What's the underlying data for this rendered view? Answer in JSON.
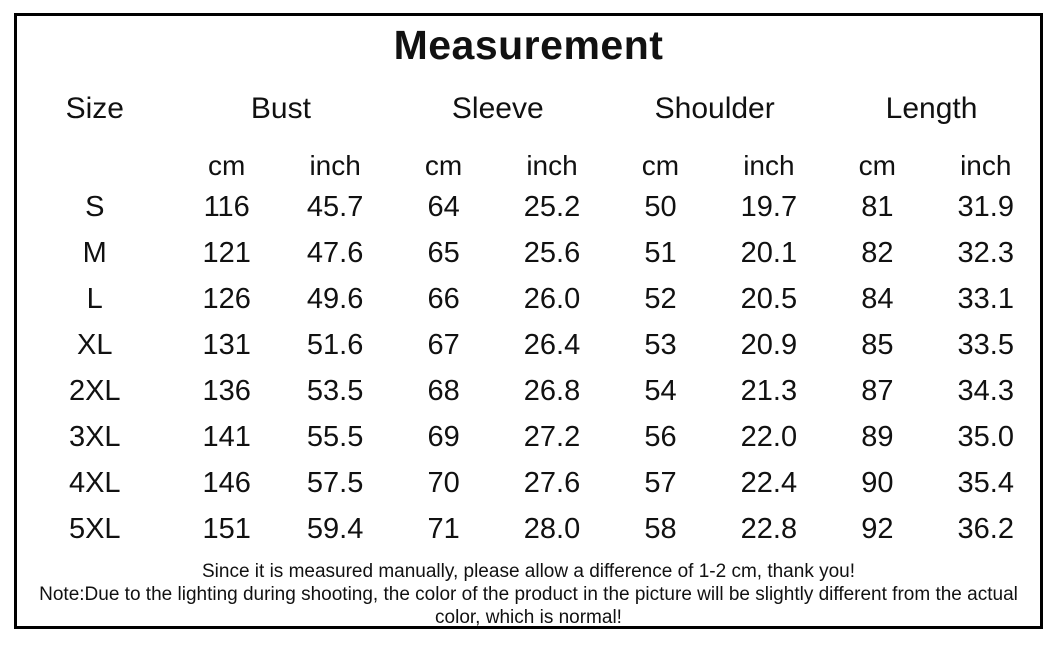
{
  "colors": {
    "background": "#ffffff",
    "border": "#000000",
    "text": "#111111"
  },
  "chart_data": {
    "type": "table",
    "title": "Measurement",
    "column_groups": [
      {
        "label": "Size",
        "span": 1
      },
      {
        "label": "Bust",
        "span": 2
      },
      {
        "label": "Sleeve",
        "span": 2
      },
      {
        "label": "Shoulder",
        "span": 2
      },
      {
        "label": "Length",
        "span": 2
      }
    ],
    "unit_row": [
      "",
      "cm",
      "inch",
      "cm",
      "inch",
      "cm",
      "inch",
      "cm",
      "inch"
    ],
    "columns_flat": [
      "Size",
      "Bust cm",
      "Bust inch",
      "Sleeve cm",
      "Sleeve inch",
      "Shoulder cm",
      "Shoulder inch",
      "Length cm",
      "Length inch"
    ],
    "rows": [
      [
        "S",
        "116",
        "45.7",
        "64",
        "25.2",
        "50",
        "19.7",
        "81",
        "31.9"
      ],
      [
        "M",
        "121",
        "47.6",
        "65",
        "25.6",
        "51",
        "20.1",
        "82",
        "32.3"
      ],
      [
        "L",
        "126",
        "49.6",
        "66",
        "26.0",
        "52",
        "20.5",
        "84",
        "33.1"
      ],
      [
        "XL",
        "131",
        "51.6",
        "67",
        "26.4",
        "53",
        "20.9",
        "85",
        "33.5"
      ],
      [
        "2XL",
        "136",
        "53.5",
        "68",
        "26.8",
        "54",
        "21.3",
        "87",
        "34.3"
      ],
      [
        "3XL",
        "141",
        "55.5",
        "69",
        "27.2",
        "56",
        "22.0",
        "89",
        "35.0"
      ],
      [
        "4XL",
        "146",
        "57.5",
        "70",
        "27.6",
        "57",
        "22.4",
        "90",
        "35.4"
      ],
      [
        "5XL",
        "151",
        "59.4",
        "71",
        "28.0",
        "58",
        "22.8",
        "92",
        "36.2"
      ]
    ],
    "notes": [
      "Since it is measured manually, please allow a difference of 1-2 cm, thank you!",
      "Note:Due to the lighting during shooting, the color of the product in the picture will be slightly different from the actual color, which is normal!"
    ],
    "layout_hints": {
      "grid": false,
      "row_unit_labels": true
    }
  }
}
